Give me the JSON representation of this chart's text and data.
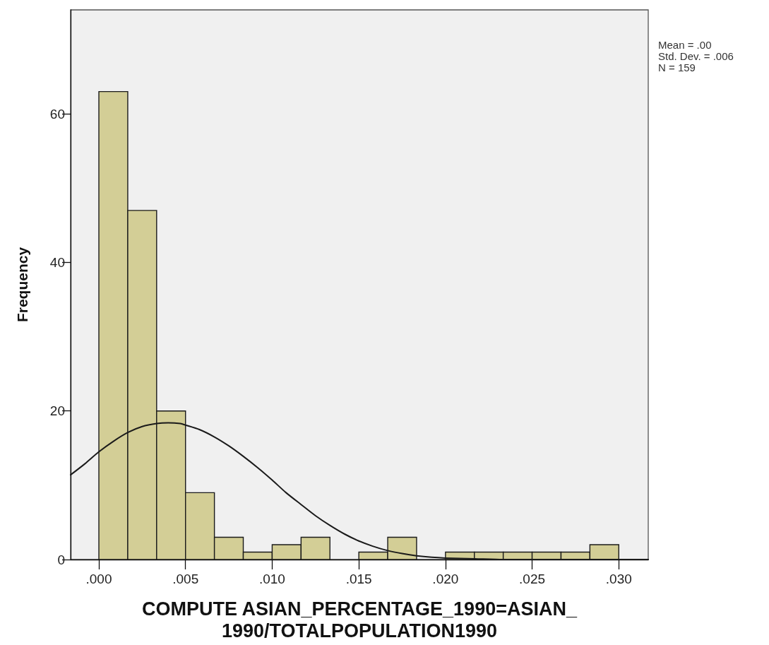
{
  "chart_data": {
    "type": "histogram",
    "xlabel": "COMPUTE ASIAN_PERCENTAGE_1990=ASIAN_\n1990/TOTALPOPULATION1990",
    "ylabel": "Frequency",
    "annotations": [
      "Mean = .00",
      "Std. Dev. = .006",
      "N = 159"
    ],
    "bins": [
      0,
      0.001667,
      0.003333,
      0.005,
      0.006667,
      0.008333,
      0.01,
      0.011667,
      0.013333,
      0.015,
      0.016667,
      0.018333,
      0.02,
      0.021667,
      0.023333,
      0.025,
      0.026667,
      0.028333,
      0.03
    ],
    "series": [
      {
        "color": "#d3ce96",
        "values": [
          63,
          47,
          20,
          9,
          3,
          1,
          2,
          3,
          0,
          1,
          3,
          0,
          1,
          1,
          1,
          1,
          1,
          2
        ]
      },
      {
        "type": "line",
        "color": "#1a1a1a",
        "x": [
          -0.00163,
          -0.0008,
          0,
          0.00083,
          0.00167,
          0.0025,
          0.00333,
          0.004,
          0.0047,
          0.005,
          0.0058,
          0.00667,
          0.0075,
          0.00833,
          0.0092,
          0.01,
          0.0108,
          0.01167,
          0.0125,
          0.01333,
          0.0142,
          0.015,
          0.0158,
          0.01667,
          0.0175,
          0.01833,
          0.0192,
          0.02,
          0.0217,
          0.0233,
          0.025,
          0.0275,
          0.03,
          0.0317
        ],
        "values": [
          11.4,
          12.9,
          14.5,
          15.9,
          17.1,
          17.9,
          18.3,
          18.4,
          18.3,
          18.1,
          17.5,
          16.5,
          15.3,
          13.9,
          12.3,
          10.7,
          9.0,
          7.4,
          5.9,
          4.6,
          3.4,
          2.5,
          1.8,
          1.2,
          0.8,
          0.5,
          0.3,
          0.2,
          0.1,
          0,
          0,
          0,
          0,
          0
        ]
      }
    ],
    "xlim": [
      -0.00163,
      0.0317
    ],
    "xticks": [
      {
        "value": 0,
        "label": ".000"
      },
      {
        "value": 0.005,
        "label": ".005"
      },
      {
        "value": 0.01,
        "label": ".010"
      },
      {
        "value": 0.015,
        "label": ".015"
      },
      {
        "value": 0.02,
        "label": ".020"
      },
      {
        "value": 0.025,
        "label": ".025"
      },
      {
        "value": 0.03,
        "label": ".030"
      }
    ],
    "ylim": [
      0,
      74
    ],
    "yticks": [
      0,
      20,
      40,
      60
    ]
  }
}
